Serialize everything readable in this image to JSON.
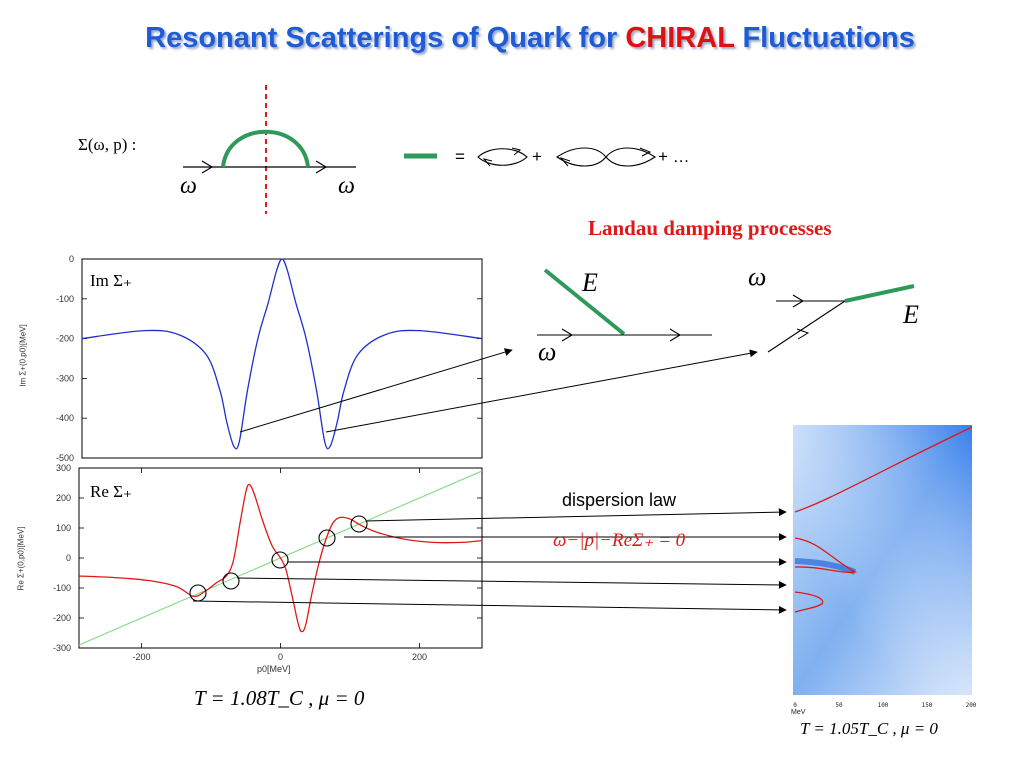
{
  "title": {
    "prefix": "Resonant Scatterings of Quark for",
    "highlight": "CHIRAL",
    "suffix": "Fluctuations"
  },
  "colors": {
    "title_blue": "#1e5bd6",
    "title_red": "#e01010",
    "self_energy_green": "#2e9a5a",
    "curve_blue": "#1f2fcf",
    "curve_red": "#e01818",
    "guide_green": "#7ad67a"
  },
  "feynman": {
    "sigma_label": "Σ(ω, p) :",
    "omega_in": "ω",
    "omega_out": "ω",
    "equals": "=",
    "plus1": "+",
    "plus2": "+ …"
  },
  "landau": {
    "heading": "Landau damping processes",
    "left": {
      "E": "E",
      "omega": "ω"
    },
    "right": {
      "omega": "ω",
      "E": "E"
    }
  },
  "plot_im": {
    "label": "Im Σ₊",
    "ylabel": "Im Σ+(0,p0)[MeV]",
    "yticks": [
      "0",
      "-100",
      "-200",
      "-300",
      "-400",
      "-500"
    ]
  },
  "plot_re": {
    "label": "Re Σ₊",
    "ylabel": "Re Σ+(0,p0)[MeV]",
    "yticks": [
      "300",
      "200",
      "100",
      "0",
      "-100",
      "-200",
      "-300"
    ],
    "xticks": [
      "-200",
      "0",
      "200"
    ],
    "xlabel": "p0[MeV]"
  },
  "chart_data": [
    {
      "type": "line",
      "title": "Im Σ₊",
      "xlabel": "",
      "ylabel": "Im Σ+(0,p0)[MeV]",
      "xlim": [
        -290,
        290
      ],
      "ylim": [
        -500,
        0
      ],
      "series": [
        {
          "values": [
            [
              -290,
              -200
            ],
            [
              -200,
              -180
            ],
            [
              -150,
              -190
            ],
            [
              -110,
              -240
            ],
            [
              -90,
              -330
            ],
            [
              -80,
              -410
            ],
            [
              -70,
              -470
            ],
            [
              -62,
              -460
            ],
            [
              -50,
              -330
            ],
            [
              -35,
              -200
            ],
            [
              -20,
              -110
            ],
            [
              -8,
              -30
            ],
            [
              0,
              0
            ],
            [
              8,
              -30
            ],
            [
              20,
              -110
            ],
            [
              35,
              -200
            ],
            [
              50,
              -330
            ],
            [
              62,
              -460
            ],
            [
              70,
              -470
            ],
            [
              80,
              -410
            ],
            [
              90,
              -330
            ],
            [
              110,
              -240
            ],
            [
              150,
              -190
            ],
            [
              200,
              -180
            ],
            [
              290,
              -200
            ]
          ]
        }
      ]
    },
    {
      "type": "line",
      "title": "Re Σ₊",
      "xlabel": "p0[MeV]",
      "ylabel": "Re Σ+(0,p0)[MeV]",
      "xlim": [
        -290,
        290
      ],
      "ylim": [
        -300,
        300
      ],
      "series": [
        {
          "values": [
            [
              -290,
              -60
            ],
            [
              -240,
              -65
            ],
            [
              -190,
              -75
            ],
            [
              -150,
              -95
            ],
            [
              -125,
              -128
            ],
            [
              -108,
              -110
            ],
            [
              -92,
              -82
            ],
            [
              -78,
              -60
            ],
            [
              -68,
              -10
            ],
            [
              -58,
              120
            ],
            [
              -50,
              220
            ],
            [
              -45,
              245
            ],
            [
              -38,
              215
            ],
            [
              -25,
              120
            ],
            [
              -12,
              40
            ],
            [
              0,
              0
            ],
            [
              8,
              -40
            ],
            [
              18,
              -140
            ],
            [
              25,
              -215
            ],
            [
              30,
              -245
            ],
            [
              36,
              -225
            ],
            [
              45,
              -120
            ],
            [
              55,
              -20
            ],
            [
              65,
              60
            ],
            [
              75,
              115
            ],
            [
              85,
              135
            ],
            [
              100,
              130
            ],
            [
              115,
              110
            ],
            [
              140,
              85
            ],
            [
              180,
              62
            ],
            [
              220,
              52
            ],
            [
              260,
              52
            ],
            [
              290,
              58
            ]
          ]
        },
        {
          "values": [
            [
              -290,
              -290
            ],
            [
              290,
              290
            ]
          ]
        }
      ]
    }
  ],
  "annotations": {
    "dispersion_label": "dispersion law",
    "dispersion_eq": "ω−|p|−ReΣ₊ = 0",
    "temp_left": "T = 1.08T_C , μ = 0",
    "temp_right": "T = 1.05T_C , μ = 0"
  },
  "heatmap": {
    "xticks": [
      "0",
      "50",
      "100",
      "150",
      "200"
    ],
    "xunit": "MeV"
  }
}
